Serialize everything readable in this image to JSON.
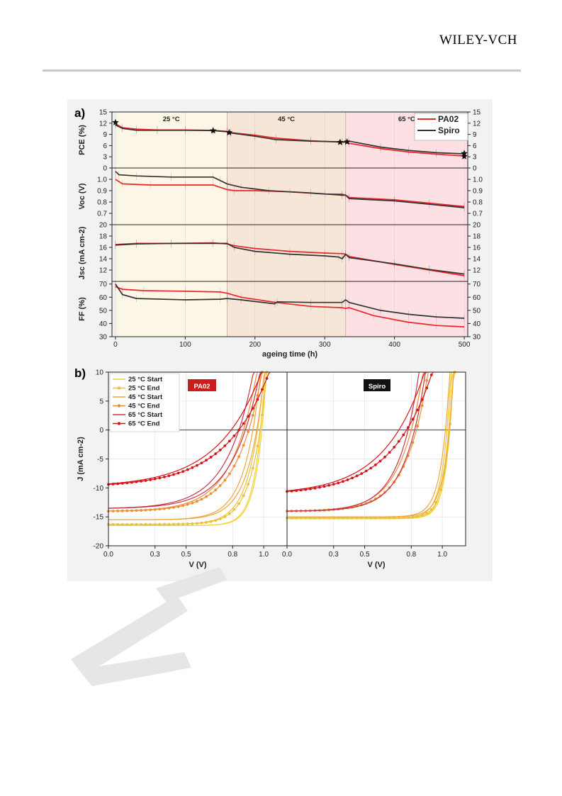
{
  "header": {
    "publisher": "WILEY-VCH"
  },
  "colors": {
    "pa02": "#e8262b",
    "spiro": "#333333",
    "zone25": "#fbf6e6",
    "zone45": "#f6e6d8",
    "zone65": "#fce0e3",
    "iv25s": "#f3d23a",
    "iv25e": "#e9c23a",
    "iv45s": "#f0a53c",
    "iv45e": "#e98f36",
    "iv65s": "#c6344a",
    "iv65e": "#d5141b"
  },
  "panel_a": {
    "label": "a)"
  },
  "panel_b": {
    "label": "b)"
  },
  "chart_data": [
    {
      "type": "line",
      "panel": "a",
      "xlabel": "ageing time (h)",
      "xlim": [
        -5,
        505
      ],
      "x_ticks": [
        "0",
        "100",
        "200",
        "300",
        "400",
        "500"
      ],
      "zones": [
        {
          "label": "25 °C",
          "from": 0,
          "to": 160
        },
        {
          "label": "45 °C",
          "from": 160,
          "to": 330
        },
        {
          "label": "65 °C",
          "from": 330,
          "to": 505
        }
      ],
      "legend": [
        "PA02",
        "Spiro"
      ],
      "legend_position": "top-right",
      "subplots": [
        {
          "ylabel": "PCE (%)",
          "ylim": [
            0,
            15
          ],
          "y_ticks": [
            "0",
            "3",
            "6",
            "9",
            "12",
            "15"
          ],
          "series": [
            {
              "name": "PA02",
              "x": [
                0,
                10,
                30,
                60,
                100,
                140,
                160,
                165,
                200,
                230,
                280,
                325,
                330,
                335,
                380,
                420,
                460,
                500
              ],
              "y": [
                11.8,
                10.8,
                10.4,
                10.2,
                10.2,
                10.1,
                9.8,
                9.5,
                8.8,
                8.0,
                7.3,
                6.9,
                6.9,
                6.6,
                5.2,
                4.3,
                3.7,
                3.2
              ]
            },
            {
              "name": "Spiro",
              "x": [
                0,
                10,
                30,
                60,
                100,
                140,
                160,
                165,
                200,
                230,
                280,
                325,
                330,
                335,
                380,
                420,
                460,
                500
              ],
              "y": [
                11.5,
                10.6,
                10.1,
                10.1,
                10.1,
                10.0,
                9.7,
                9.4,
                8.5,
                7.6,
                7.2,
                7.0,
                7.0,
                7.2,
                5.6,
                4.7,
                4.1,
                3.8
              ]
            }
          ],
          "markers": [
            {
              "x": 0,
              "y": 12.2
            },
            {
              "x": 140,
              "y": 10.0
            },
            {
              "x": 163,
              "y": 9.5
            },
            {
              "x": 322,
              "y": 6.9
            },
            {
              "x": 332,
              "y": 7.0
            },
            {
              "x": 500,
              "y": 3.9
            },
            {
              "x": 500,
              "y": 3.1
            }
          ]
        },
        {
          "ylabel": "Voc (V)",
          "ylim": [
            0.6,
            1.1
          ],
          "y_ticks": [
            "0.7",
            "0.8",
            "0.9",
            "1.0"
          ],
          "series": [
            {
              "name": "PA02",
              "x": [
                0,
                10,
                50,
                100,
                140,
                160,
                170,
                200,
                250,
                300,
                325,
                330,
                335,
                400,
                450,
                500
              ],
              "y": [
                1.0,
                0.96,
                0.95,
                0.95,
                0.95,
                0.91,
                0.9,
                0.9,
                0.89,
                0.87,
                0.87,
                0.86,
                0.84,
                0.82,
                0.79,
                0.76
              ]
            },
            {
              "name": "Spiro",
              "x": [
                0,
                5,
                30,
                80,
                140,
                150,
                160,
                180,
                220,
                280,
                325,
                330,
                335,
                400,
                450,
                500
              ],
              "y": [
                1.07,
                1.04,
                1.03,
                1.02,
                1.02,
                0.99,
                0.96,
                0.93,
                0.9,
                0.88,
                0.86,
                0.86,
                0.83,
                0.81,
                0.78,
                0.75
              ]
            }
          ]
        },
        {
          "ylabel": "Jsc (mA cm-2)",
          "ylim": [
            10,
            20
          ],
          "y_ticks": [
            "12",
            "14",
            "16",
            "18",
            "20"
          ],
          "series": [
            {
              "name": "PA02",
              "x": [
                0,
                30,
                80,
                140,
                160,
                170,
                200,
                250,
                300,
                325,
                330,
                335,
                400,
                450,
                500
              ],
              "y": [
                16.5,
                16.7,
                16.7,
                16.8,
                16.6,
                16.3,
                15.8,
                15.3,
                15.0,
                14.9,
                14.8,
                14.4,
                13.0,
                12.0,
                11.0
              ]
            },
            {
              "name": "Spiro",
              "x": [
                0,
                30,
                80,
                140,
                160,
                170,
                200,
                250,
                300,
                320,
                325,
                330,
                335,
                400,
                450,
                500
              ],
              "y": [
                16.4,
                16.6,
                16.7,
                16.7,
                16.7,
                16.0,
                15.3,
                14.8,
                14.5,
                14.3,
                14.0,
                14.8,
                14.2,
                13.1,
                12.1,
                11.3
              ]
            }
          ]
        },
        {
          "ylabel": "FF (%)",
          "ylim": [
            30,
            72
          ],
          "y_ticks": [
            "30",
            "40",
            "50",
            "60",
            "70"
          ],
          "series": [
            {
              "name": "PA02",
              "x": [
                0,
                10,
                40,
                100,
                150,
                160,
                180,
                230,
                280,
                325,
                330,
                335,
                370,
                420,
                460,
                500
              ],
              "y": [
                68,
                66,
                65,
                64.5,
                64,
                63,
                60,
                56,
                53,
                52,
                51.5,
                52,
                46,
                41,
                38.5,
                37.5
              ]
            },
            {
              "name": "Spiro",
              "x": [
                0,
                10,
                30,
                100,
                150,
                160,
                180,
                228,
                232,
                280,
                325,
                330,
                335,
                380,
                420,
                460,
                500
              ],
              "y": [
                70,
                62,
                59,
                58,
                58.5,
                59,
                58,
                55,
                56.5,
                56,
                56,
                58,
                56,
                50,
                47,
                45,
                44
              ]
            }
          ]
        }
      ]
    },
    {
      "type": "line",
      "panel": "b",
      "xlabel": "V (V)",
      "ylabel": "J (mA cm-2)",
      "ylim": [
        -20,
        10
      ],
      "y_ticks": [
        "-20",
        "-15",
        "-10",
        "-5",
        "0",
        "5",
        "10"
      ],
      "x_ticks": [
        "0.0",
        "0.3",
        "0.5",
        "0.8",
        "1.0"
      ],
      "xlim": [
        0,
        1.15
      ],
      "legend_position": "top-left",
      "subplots": [
        {
          "label": "PA02",
          "series": [
            {
              "name": "25 °C Start",
              "jsc": -16.5,
              "voc": 0.98,
              "shape": 0.06
            },
            {
              "name": "25 °C End",
              "jsc": -16.3,
              "voc": 0.96,
              "shape": 0.09
            },
            {
              "name": "45 °C Start",
              "jsc": -15.5,
              "voc": 0.93,
              "shape": 0.1
            },
            {
              "name": "45 °C End",
              "jsc": -14.0,
              "voc": 0.87,
              "shape": 0.16
            },
            {
              "name": "65 °C Start",
              "jsc": -13.5,
              "voc": 0.84,
              "shape": 0.17
            },
            {
              "name": "65 °C End",
              "jsc": -9.3,
              "voc": 0.79,
              "shape": 0.28
            }
          ]
        },
        {
          "label": "Spiro",
          "series": [
            {
              "name": "25 °C Start",
              "jsc": -15.3,
              "voc": 1.04,
              "shape": 0.045
            },
            {
              "name": "25 °C End",
              "jsc": -15.2,
              "voc": 1.03,
              "shape": 0.05
            },
            {
              "name": "45 °C Start",
              "jsc": -15.0,
              "voc": 1.02,
              "shape": 0.055
            },
            {
              "name": "45 °C End",
              "jsc": -14.0,
              "voc": 0.8,
              "shape": 0.14
            },
            {
              "name": "65 °C Start",
              "jsc": -14.0,
              "voc": 0.78,
              "shape": 0.13
            },
            {
              "name": "65 °C End",
              "jsc": -10.5,
              "voc": 0.72,
              "shape": 0.26
            }
          ]
        }
      ]
    }
  ]
}
